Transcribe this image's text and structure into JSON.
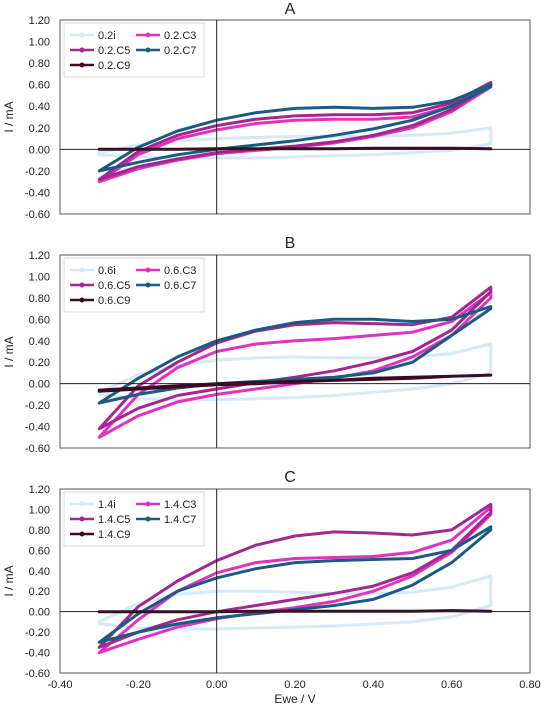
{
  "colors": {
    "i": "#d6e9f7",
    "C3": "#e033bd",
    "C5": "#a3278f",
    "C7": "#1a5b82",
    "C9": "#3d0a26"
  },
  "x_axis": {
    "label": "Ewe / V",
    "range": [
      -0.4,
      0.8
    ],
    "ticks": [
      "-0.40",
      "-0.20",
      "0.00",
      "0.20",
      "0.40",
      "0.60",
      "0.80"
    ]
  },
  "y_label": "I / mA",
  "chart_data": [
    {
      "type": "line",
      "title": "A",
      "ylim": [
        -0.6,
        1.2
      ],
      "yticks": [
        "-0.60",
        "-0.40",
        "-0.20",
        "0.00",
        "0.20",
        "0.40",
        "0.60",
        "0.80",
        "1.00",
        "1.20"
      ],
      "grid": false,
      "legend": "top-left",
      "series": [
        {
          "name": "0.2i",
          "key": "i",
          "x": [
            -0.3,
            -0.2,
            -0.1,
            0,
            0.1,
            0.2,
            0.3,
            0.4,
            0.5,
            0.6,
            0.7,
            0.7,
            0.6,
            0.5,
            0.4,
            0.3,
            0.2,
            0.1,
            0,
            -0.1,
            -0.2,
            -0.3
          ],
          "y": [
            -0.03,
            0.04,
            0.08,
            0.1,
            0.11,
            0.12,
            0.12,
            0.12,
            0.13,
            0.15,
            0.2,
            0.05,
            -0.01,
            -0.03,
            -0.05,
            -0.06,
            -0.07,
            -0.08,
            -0.08,
            -0.08,
            -0.07,
            -0.05
          ]
        },
        {
          "name": "0.2.C3",
          "key": "C3",
          "x": [
            -0.3,
            -0.2,
            -0.1,
            0,
            0.1,
            0.2,
            0.3,
            0.4,
            0.5,
            0.6,
            0.7,
            0.7,
            0.6,
            0.5,
            0.4,
            0.3,
            0.2,
            0.1,
            0,
            -0.1,
            -0.2,
            -0.3
          ],
          "y": [
            -0.3,
            -0.05,
            0.1,
            0.18,
            0.24,
            0.27,
            0.28,
            0.28,
            0.3,
            0.4,
            0.6,
            0.58,
            0.35,
            0.2,
            0.12,
            0.06,
            0.02,
            -0.01,
            -0.04,
            -0.1,
            -0.18,
            -0.3
          ]
        },
        {
          "name": "0.2.C5",
          "key": "C5",
          "x": [
            -0.3,
            -0.2,
            -0.1,
            0,
            0.1,
            0.2,
            0.3,
            0.4,
            0.5,
            0.6,
            0.7,
            0.7,
            0.6,
            0.5,
            0.4,
            0.3,
            0.2,
            0.1,
            0,
            -0.1,
            -0.2,
            -0.3
          ],
          "y": [
            -0.28,
            -0.02,
            0.13,
            0.22,
            0.28,
            0.31,
            0.32,
            0.32,
            0.34,
            0.43,
            0.62,
            0.6,
            0.37,
            0.22,
            0.13,
            0.07,
            0.03,
            0,
            -0.03,
            -0.09,
            -0.16,
            -0.28
          ]
        },
        {
          "name": "0.2.C7",
          "key": "C7",
          "x": [
            -0.3,
            -0.2,
            -0.1,
            0,
            0.1,
            0.2,
            0.3,
            0.4,
            0.5,
            0.6,
            0.7,
            0.7,
            0.6,
            0.5,
            0.4,
            0.3,
            0.2,
            0.1,
            0,
            -0.1,
            -0.2,
            -0.3
          ],
          "y": [
            -0.2,
            0.02,
            0.17,
            0.27,
            0.34,
            0.38,
            0.39,
            0.38,
            0.39,
            0.45,
            0.6,
            0.58,
            0.4,
            0.27,
            0.19,
            0.13,
            0.08,
            0.04,
            0,
            -0.05,
            -0.12,
            -0.2
          ]
        },
        {
          "name": "0.2.C9",
          "key": "C9",
          "x": [
            -0.3,
            -0.2,
            -0.1,
            0,
            0.1,
            0.2,
            0.3,
            0.4,
            0.5,
            0.6,
            0.7
          ],
          "y": [
            0,
            0,
            0,
            0.005,
            0.005,
            0.005,
            0.005,
            0.01,
            0.01,
            0.01,
            0.005
          ]
        }
      ]
    },
    {
      "type": "line",
      "title": "B",
      "ylim": [
        -0.6,
        1.2
      ],
      "yticks": [
        "-0.60",
        "-0.40",
        "-0.20",
        "0.00",
        "0.20",
        "0.40",
        "0.60",
        "0.80",
        "1.00",
        "1.20"
      ],
      "grid": false,
      "legend": "top-left",
      "series": [
        {
          "name": "0.6i",
          "key": "i",
          "x": [
            -0.3,
            -0.2,
            -0.1,
            0,
            0.1,
            0.2,
            0.3,
            0.4,
            0.5,
            0.6,
            0.7,
            0.7,
            0.6,
            0.5,
            0.4,
            0.3,
            0.2,
            0.1,
            0,
            -0.1,
            -0.2,
            -0.3
          ],
          "y": [
            -0.08,
            0.08,
            0.17,
            0.22,
            0.24,
            0.25,
            0.24,
            0.24,
            0.25,
            0.28,
            0.37,
            0.1,
            0,
            -0.05,
            -0.08,
            -0.11,
            -0.13,
            -0.14,
            -0.15,
            -0.15,
            -0.14,
            -0.1
          ]
        },
        {
          "name": "0.6.C3",
          "key": "C3",
          "x": [
            -0.3,
            -0.2,
            -0.1,
            0,
            0.1,
            0.2,
            0.3,
            0.4,
            0.5,
            0.6,
            0.7,
            0.7,
            0.6,
            0.5,
            0.4,
            0.3,
            0.2,
            0.1,
            0,
            -0.1,
            -0.2,
            -0.3
          ],
          "y": [
            -0.5,
            -0.1,
            0.15,
            0.3,
            0.37,
            0.4,
            0.42,
            0.45,
            0.48,
            0.58,
            0.85,
            0.8,
            0.45,
            0.25,
            0.12,
            0.05,
            0,
            -0.05,
            -0.1,
            -0.17,
            -0.3,
            -0.5
          ]
        },
        {
          "name": "0.6.C5",
          "key": "C5",
          "x": [
            -0.3,
            -0.2,
            -0.1,
            0,
            0.1,
            0.2,
            0.3,
            0.4,
            0.5,
            0.6,
            0.7,
            0.7,
            0.6,
            0.5,
            0.4,
            0.3,
            0.2,
            0.1,
            0,
            -0.1,
            -0.2,
            -0.3
          ],
          "y": [
            -0.42,
            -0.02,
            0.2,
            0.38,
            0.49,
            0.55,
            0.57,
            0.56,
            0.55,
            0.62,
            0.9,
            0.86,
            0.5,
            0.3,
            0.2,
            0.12,
            0.06,
            0.01,
            -0.05,
            -0.11,
            -0.23,
            -0.42
          ]
        },
        {
          "name": "0.6.C7",
          "key": "C7",
          "x": [
            -0.3,
            -0.2,
            -0.1,
            0,
            0.1,
            0.2,
            0.3,
            0.4,
            0.5,
            0.6,
            0.7,
            0.7,
            0.6,
            0.5,
            0.4,
            0.3,
            0.2,
            0.1,
            0,
            -0.1,
            -0.2,
            -0.3
          ],
          "y": [
            -0.18,
            0.05,
            0.25,
            0.4,
            0.5,
            0.57,
            0.6,
            0.6,
            0.58,
            0.6,
            0.72,
            0.7,
            0.45,
            0.2,
            0.1,
            0.06,
            0.04,
            0.02,
            0,
            -0.04,
            -0.1,
            -0.18
          ]
        },
        {
          "name": "0.6.C9",
          "key": "C9",
          "x": [
            -0.3,
            -0.2,
            -0.1,
            0,
            0.1,
            0.2,
            0.3,
            0.4,
            0.5,
            0.6,
            0.7,
            0.7,
            0.6,
            0.5,
            0.4,
            0.3,
            0.2,
            0.1,
            0,
            -0.1,
            -0.2,
            -0.3
          ],
          "y": [
            -0.06,
            -0.04,
            -0.02,
            0,
            0.01,
            0.02,
            0.03,
            0.05,
            0.06,
            0.07,
            0.08,
            0.08,
            0.07,
            0.05,
            0.04,
            0.03,
            0.02,
            0,
            -0.01,
            -0.03,
            -0.05,
            -0.07
          ]
        }
      ]
    },
    {
      "type": "line",
      "title": "C",
      "ylim": [
        -0.6,
        1.2
      ],
      "yticks": [
        "-0.60",
        "-0.40",
        "-0.20",
        "0.00",
        "0.20",
        "0.40",
        "0.60",
        "0.80",
        "1.00",
        "1.20"
      ],
      "grid": false,
      "legend": "top-left",
      "series": [
        {
          "name": "1.4i",
          "key": "i",
          "x": [
            -0.3,
            -0.2,
            -0.1,
            0,
            0.1,
            0.2,
            0.3,
            0.4,
            0.5,
            0.6,
            0.7,
            0.7,
            0.6,
            0.5,
            0.4,
            0.3,
            0.2,
            0.1,
            0,
            -0.1,
            -0.2,
            -0.3
          ],
          "y": [
            -0.1,
            0.08,
            0.17,
            0.2,
            0.2,
            0.19,
            0.18,
            0.18,
            0.19,
            0.24,
            0.35,
            0.06,
            -0.05,
            -0.1,
            -0.12,
            -0.14,
            -0.15,
            -0.16,
            -0.17,
            -0.17,
            -0.16,
            -0.12
          ]
        },
        {
          "name": "1.4.C3",
          "key": "C3",
          "x": [
            -0.3,
            -0.2,
            -0.1,
            0,
            0.1,
            0.2,
            0.3,
            0.4,
            0.5,
            0.6,
            0.7,
            0.7,
            0.6,
            0.5,
            0.4,
            0.3,
            0.2,
            0.1,
            0,
            -0.1,
            -0.2,
            -0.3
          ],
          "y": [
            -0.4,
            -0.08,
            0.2,
            0.38,
            0.48,
            0.52,
            0.53,
            0.54,
            0.58,
            0.7,
            1.02,
            0.95,
            0.58,
            0.35,
            0.2,
            0.1,
            0.04,
            -0.01,
            -0.07,
            -0.15,
            -0.27,
            -0.4
          ]
        },
        {
          "name": "1.4.C5",
          "key": "C5",
          "x": [
            -0.3,
            -0.2,
            -0.1,
            0,
            0.1,
            0.2,
            0.3,
            0.4,
            0.5,
            0.6,
            0.7,
            0.7,
            0.6,
            0.5,
            0.4,
            0.3,
            0.2,
            0.1,
            0,
            -0.1,
            -0.2,
            -0.3
          ],
          "y": [
            -0.35,
            0.05,
            0.3,
            0.5,
            0.65,
            0.74,
            0.78,
            0.77,
            0.75,
            0.8,
            1.05,
            0.97,
            0.6,
            0.38,
            0.25,
            0.18,
            0.12,
            0.06,
            0,
            -0.08,
            -0.2,
            -0.35
          ]
        },
        {
          "name": "1.4.C7",
          "key": "C7",
          "x": [
            -0.3,
            -0.2,
            -0.1,
            0,
            0.1,
            0.2,
            0.3,
            0.4,
            0.5,
            0.6,
            0.7,
            0.7,
            0.6,
            0.5,
            0.4,
            0.3,
            0.2,
            0.1,
            0,
            -0.1,
            -0.2,
            -0.3
          ],
          "y": [
            -0.3,
            -0.02,
            0.2,
            0.33,
            0.42,
            0.48,
            0.5,
            0.51,
            0.52,
            0.6,
            0.83,
            0.8,
            0.48,
            0.26,
            0.12,
            0.06,
            0.02,
            -0.02,
            -0.06,
            -0.12,
            -0.2,
            -0.3
          ]
        },
        {
          "name": "1.4.C9",
          "key": "C9",
          "x": [
            -0.3,
            -0.2,
            -0.1,
            0,
            0.1,
            0.2,
            0.3,
            0.4,
            0.5,
            0.6,
            0.7
          ],
          "y": [
            0,
            0,
            0,
            0,
            0.005,
            0.005,
            0.005,
            0.005,
            0.005,
            0.01,
            0.005
          ]
        }
      ]
    }
  ]
}
